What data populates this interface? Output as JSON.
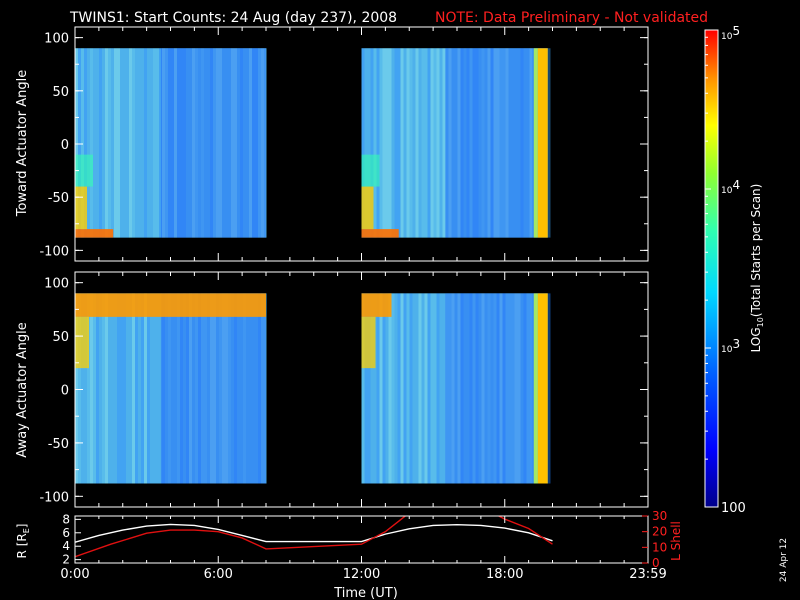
{
  "header": {
    "title": "TWINS1: Start Counts: 24 Aug (day 237), 2008",
    "note": "NOTE: Data Preliminary - Not validated"
  },
  "colors": {
    "note": "#ff2020",
    "r_line": "#ffffff",
    "lshell_line": "#e01010",
    "spectrogram_background": "#5fc0e8"
  },
  "colorbar": {
    "label": "LOG10(Total Starts per Scan)",
    "label_prefix": "LOG",
    "label_sub": "10",
    "label_suffix": "(Total Starts per Scan)",
    "scale": "log",
    "range": [
      100,
      100000
    ],
    "ticks": [
      {
        "value": 100000,
        "base": "10",
        "exp": "5"
      },
      {
        "value": 10000,
        "base": "10",
        "exp": "4"
      },
      {
        "value": 1000,
        "base": "10",
        "exp": "3"
      },
      {
        "value": 100,
        "base": "100",
        "exp": ""
      }
    ]
  },
  "footer": {
    "date_stamp": "24 Apr 12"
  },
  "chart_data": [
    {
      "type": "heatmap",
      "name": "toward",
      "ylabel": "Toward Actuator Angle",
      "ylim": [
        -110,
        110
      ],
      "xlim": [
        0,
        24
      ],
      "yticks": [
        100,
        50,
        0,
        -50,
        -100
      ],
      "ytick_labels": [
        "100",
        "50",
        "0",
        "-50",
        "-100"
      ],
      "angle_range": [
        -88,
        90
      ],
      "coverage": [
        {
          "start": 0.0,
          "end": 8.0
        },
        {
          "start": 12.0,
          "end": 19.8
        }
      ],
      "hot_regions": [
        "low angles near 0:00",
        "low angles near 12:00",
        "edge at 19:40"
      ]
    },
    {
      "type": "heatmap",
      "name": "away",
      "ylabel": "Away Actuator Angle",
      "ylim": [
        -110,
        110
      ],
      "xlim": [
        0,
        24
      ],
      "yticks": [
        100,
        50,
        0,
        -50,
        -100
      ],
      "ytick_labels": [
        "100",
        "50",
        "0",
        "-50",
        "-100"
      ],
      "angle_range": [
        -88,
        90
      ],
      "coverage": [
        {
          "start": 0.0,
          "end": 8.0
        },
        {
          "start": 12.0,
          "end": 19.8
        }
      ],
      "hot_regions": [
        "high angles 0:00-8:00",
        "high angles near 12:00",
        "edge at 19:40"
      ]
    },
    {
      "type": "line",
      "name": "orbit",
      "xlabel": "Time (UT)",
      "xlim": [
        0,
        24
      ],
      "xticks": [
        0,
        6,
        12,
        18,
        24
      ],
      "xtick_labels": [
        "0:00",
        "6:00",
        "12:00",
        "18:00",
        "23:59"
      ],
      "left_axis": {
        "label": "R [RE]",
        "label_main": "R [R",
        "label_sub": "E",
        "label_end": "]",
        "ylim": [
          1.5,
          8.5
        ],
        "ticks": [
          8,
          6,
          4,
          2
        ],
        "tick_labels": [
          "8",
          "6",
          "4",
          "2"
        ]
      },
      "right_axis": {
        "label": "L Shell",
        "ylim": [
          0,
          30
        ],
        "ticks": [
          30,
          20,
          10,
          0
        ],
        "tick_labels": [
          "30",
          "20",
          "10",
          "0"
        ]
      },
      "series": [
        {
          "axis": "left",
          "color": "#ffffff",
          "x": [
            0,
            1,
            2,
            3,
            4,
            5,
            6,
            7,
            8,
            12,
            13,
            14,
            15,
            16,
            17,
            18,
            19,
            20
          ],
          "y": [
            4.6,
            5.6,
            6.4,
            7.0,
            7.25,
            7.1,
            6.5,
            5.6,
            4.7,
            4.7,
            5.8,
            6.6,
            7.1,
            7.2,
            7.1,
            6.7,
            6.0,
            4.8
          ]
        },
        {
          "axis": "right",
          "color": "#e01010",
          "x": [
            0,
            1.5,
            3,
            4,
            5,
            6,
            7,
            8,
            12,
            12.5,
            13,
            13.5,
            14,
            17.5,
            18,
            19,
            20
          ],
          "y": [
            4,
            12,
            19,
            21,
            21,
            20,
            16,
            9,
            12,
            16,
            20,
            26,
            32,
            32,
            28,
            22,
            12
          ]
        }
      ]
    }
  ]
}
